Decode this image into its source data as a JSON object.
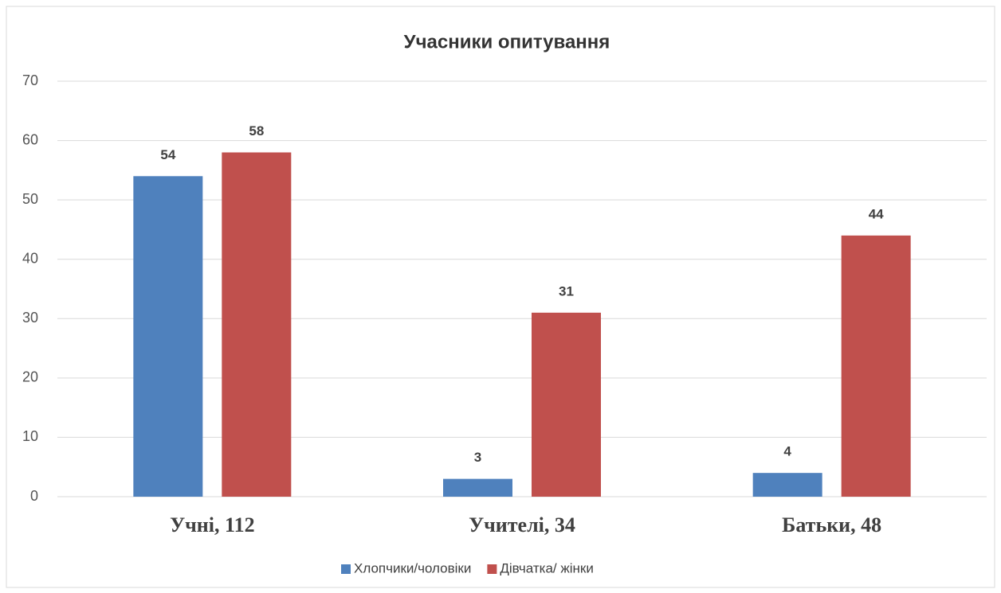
{
  "chart_data": {
    "type": "bar",
    "title": "Учасники опитування",
    "categories": [
      "Учні, 112",
      "Учителі, 34",
      "Батьки, 48"
    ],
    "series": [
      {
        "name": "Хлопчики/чоловіки",
        "color": "#4f81bd",
        "values": [
          54,
          3,
          4
        ]
      },
      {
        "name": "Дівчатка/ жінки",
        "color": "#c0504d",
        "values": [
          58,
          31,
          44
        ]
      }
    ],
    "ylim": [
      0,
      70
    ],
    "yticks": [
      0,
      10,
      20,
      30,
      40,
      50,
      60,
      70
    ],
    "grid": true,
    "legend": "bottom"
  }
}
